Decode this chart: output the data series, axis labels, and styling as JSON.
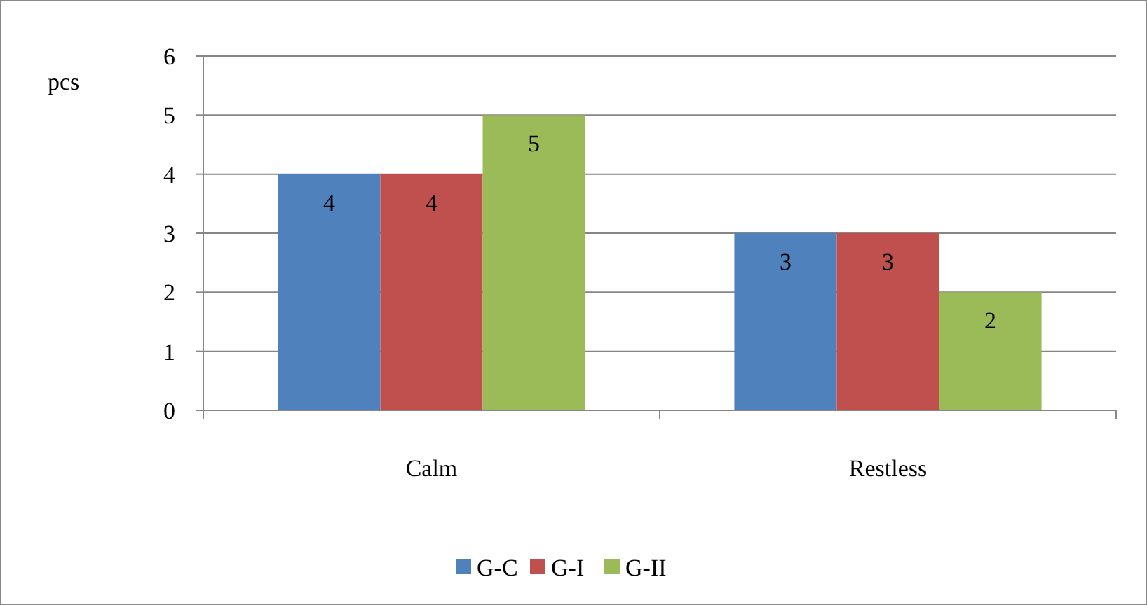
{
  "chart_data": {
    "type": "bar",
    "ylabel": "pcs",
    "categories": [
      "Calm",
      "Restless"
    ],
    "series": [
      {
        "name": "G-C",
        "color": "#4f81bd",
        "values": [
          4,
          3
        ]
      },
      {
        "name": "G-I",
        "color": "#c0504d",
        "values": [
          4,
          3
        ]
      },
      {
        "name": "G-II",
        "color": "#9bbb59",
        "values": [
          5,
          2
        ]
      }
    ],
    "ylim": [
      0,
      6
    ],
    "yticks": [
      0,
      1,
      2,
      3,
      4,
      5,
      6
    ],
    "grid": "y",
    "legend": "bottom",
    "data_labels": true
  }
}
